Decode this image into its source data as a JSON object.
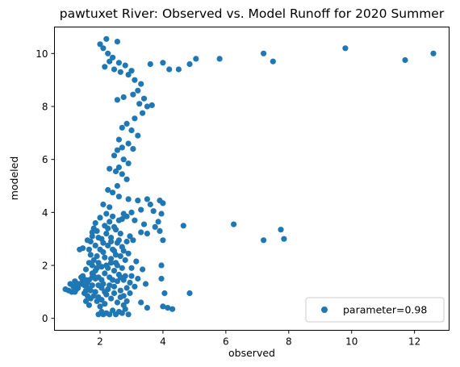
{
  "chart_data": {
    "type": "scatter",
    "title": "pawtuxet River: Observed vs. Model Runoff for 2020 Summer",
    "xlabel": "observed",
    "ylabel": "modeled",
    "xlim": [
      0.55,
      13.1
    ],
    "ylim": [
      -0.45,
      11.0
    ],
    "xticks": [
      2,
      4,
      6,
      8,
      10,
      12
    ],
    "yticks": [
      0,
      2,
      4,
      6,
      8,
      10
    ],
    "grid": false,
    "legend_position": "lower-right",
    "series": [
      {
        "name": "parameter=0.98",
        "color": "#1f77b4",
        "points": [
          [
            2.0,
            10.35
          ],
          [
            2.2,
            10.55
          ],
          [
            2.55,
            10.45
          ],
          [
            2.1,
            10.2
          ],
          [
            2.25,
            10.0
          ],
          [
            2.4,
            9.85
          ],
          [
            2.3,
            9.7
          ],
          [
            2.6,
            9.65
          ],
          [
            2.15,
            9.5
          ],
          [
            2.45,
            9.4
          ],
          [
            2.65,
            9.3
          ],
          [
            2.8,
            9.55
          ],
          [
            3.0,
            9.35
          ],
          [
            2.9,
            9.2
          ],
          [
            3.1,
            9.0
          ],
          [
            3.3,
            8.85
          ],
          [
            3.2,
            8.6
          ],
          [
            3.05,
            8.45
          ],
          [
            2.75,
            8.35
          ],
          [
            2.55,
            8.25
          ],
          [
            3.4,
            8.3
          ],
          [
            3.25,
            8.1
          ],
          [
            3.5,
            8.0
          ],
          [
            3.65,
            8.05
          ],
          [
            3.35,
            7.75
          ],
          [
            3.1,
            7.55
          ],
          [
            2.85,
            7.35
          ],
          [
            2.7,
            7.2
          ],
          [
            3.0,
            7.1
          ],
          [
            3.2,
            6.9
          ],
          [
            2.6,
            6.75
          ],
          [
            2.9,
            6.6
          ],
          [
            2.7,
            6.45
          ],
          [
            3.05,
            6.4
          ],
          [
            2.55,
            6.35
          ],
          [
            2.45,
            6.15
          ],
          [
            2.75,
            6.0
          ],
          [
            2.9,
            5.85
          ],
          [
            2.6,
            5.7
          ],
          [
            2.3,
            5.65
          ],
          [
            2.5,
            5.55
          ],
          [
            2.7,
            5.45
          ],
          [
            2.85,
            5.25
          ],
          [
            2.55,
            5.0
          ],
          [
            2.25,
            4.85
          ],
          [
            2.4,
            4.75
          ],
          [
            2.6,
            4.6
          ],
          [
            2.9,
            4.5
          ],
          [
            3.2,
            4.45
          ],
          [
            3.5,
            4.5
          ],
          [
            3.9,
            4.45
          ],
          [
            3.6,
            4.3
          ],
          [
            4.0,
            4.35
          ],
          [
            2.1,
            4.3
          ],
          [
            2.3,
            4.2
          ],
          [
            3.3,
            4.1
          ],
          [
            3.0,
            4.0
          ],
          [
            3.7,
            4.05
          ],
          [
            3.85,
            3.65
          ],
          [
            3.95,
            3.95
          ],
          [
            2.85,
            3.85
          ],
          [
            2.7,
            3.75
          ],
          [
            3.1,
            3.7
          ],
          [
            3.4,
            3.55
          ],
          [
            3.75,
            3.45
          ],
          [
            3.9,
            3.3
          ],
          [
            3.3,
            3.25
          ],
          [
            3.5,
            3.2
          ],
          [
            2.95,
            3.1
          ],
          [
            3.05,
            2.95
          ],
          [
            4.65,
            3.5
          ],
          [
            6.25,
            3.55
          ],
          [
            7.2,
            2.95
          ],
          [
            7.75,
            3.35
          ],
          [
            7.85,
            3.0
          ],
          [
            4.0,
            2.95
          ],
          [
            3.95,
            2.0
          ],
          [
            3.95,
            1.5
          ],
          [
            4.05,
            0.95
          ],
          [
            4.0,
            0.45
          ],
          [
            4.15,
            0.4
          ],
          [
            4.3,
            0.35
          ],
          [
            4.85,
            0.95
          ],
          [
            3.5,
            0.4
          ],
          [
            3.3,
            0.6
          ],
          [
            3.1,
            1.2
          ],
          [
            3.2,
            1.5
          ],
          [
            3.45,
            1.3
          ],
          [
            3.35,
            1.85
          ],
          [
            3.0,
            1.9
          ],
          [
            3.15,
            2.15
          ],
          [
            3.6,
            9.6
          ],
          [
            4.0,
            9.65
          ],
          [
            4.2,
            9.4
          ],
          [
            4.5,
            9.4
          ],
          [
            4.85,
            9.6
          ],
          [
            5.05,
            9.8
          ],
          [
            5.8,
            9.8
          ],
          [
            7.2,
            10.0
          ],
          [
            7.5,
            9.7
          ],
          [
            9.8,
            10.2
          ],
          [
            11.7,
            9.75
          ],
          [
            12.6,
            10.0
          ],
          [
            0.9,
            1.1
          ],
          [
            1.0,
            1.05
          ],
          [
            1.05,
            1.3
          ],
          [
            1.1,
            1.0
          ],
          [
            1.15,
            1.2
          ],
          [
            1.2,
            1.4
          ],
          [
            1.25,
            1.1
          ],
          [
            1.3,
            1.3
          ],
          [
            1.35,
            2.6
          ],
          [
            1.45,
            2.65
          ],
          [
            1.4,
            1.55
          ],
          [
            1.5,
            1.25
          ],
          [
            1.55,
            1.05
          ],
          [
            1.6,
            0.85
          ],
          [
            1.55,
            0.65
          ],
          [
            1.65,
            0.5
          ],
          [
            1.7,
            2.9
          ],
          [
            1.75,
            3.1
          ],
          [
            1.8,
            3.4
          ],
          [
            1.85,
            3.6
          ],
          [
            1.9,
            3.3
          ],
          [
            1.95,
            3.05
          ],
          [
            1.7,
            2.4
          ],
          [
            1.8,
            2.2
          ],
          [
            1.9,
            1.9
          ],
          [
            1.75,
            1.7
          ],
          [
            1.85,
            1.5
          ],
          [
            1.95,
            1.25
          ],
          [
            1.7,
            1.05
          ],
          [
            1.8,
            0.85
          ],
          [
            1.9,
            0.65
          ],
          [
            2.0,
            0.45
          ],
          [
            2.05,
            0.25
          ],
          [
            1.95,
            0.15
          ],
          [
            2.1,
            0.15
          ],
          [
            2.2,
            0.2
          ],
          [
            2.3,
            0.15
          ],
          [
            2.4,
            0.3
          ],
          [
            2.5,
            0.15
          ],
          [
            2.6,
            0.25
          ],
          [
            2.7,
            0.2
          ],
          [
            2.8,
            0.35
          ],
          [
            2.9,
            0.15
          ],
          [
            2.15,
            0.55
          ],
          [
            2.35,
            0.75
          ],
          [
            2.55,
            0.6
          ],
          [
            2.45,
            0.95
          ],
          [
            2.25,
            1.1
          ],
          [
            2.65,
            1.05
          ],
          [
            2.75,
            0.85
          ],
          [
            2.85,
            1.15
          ],
          [
            2.95,
            1.35
          ],
          [
            2.05,
            1.45
          ],
          [
            2.15,
            1.7
          ],
          [
            2.3,
            1.55
          ],
          [
            2.45,
            1.8
          ],
          [
            2.6,
            1.65
          ],
          [
            2.75,
            1.45
          ],
          [
            2.2,
            2.0
          ],
          [
            2.35,
            2.25
          ],
          [
            2.5,
            2.1
          ],
          [
            2.65,
            2.35
          ],
          [
            2.8,
            2.2
          ],
          [
            2.1,
            2.5
          ],
          [
            2.25,
            2.75
          ],
          [
            2.4,
            2.6
          ],
          [
            2.55,
            2.85
          ],
          [
            2.7,
            2.7
          ],
          [
            2.05,
            3.0
          ],
          [
            2.2,
            3.2
          ],
          [
            2.35,
            3.05
          ],
          [
            2.5,
            3.35
          ],
          [
            2.65,
            3.2
          ],
          [
            2.15,
            3.5
          ],
          [
            2.3,
            3.65
          ],
          [
            2.45,
            3.45
          ],
          [
            2.6,
            3.7
          ],
          [
            2.0,
            3.8
          ],
          [
            2.2,
            3.95
          ],
          [
            2.4,
            3.85
          ],
          [
            2.75,
            3.95
          ],
          [
            2.1,
            2.85
          ],
          [
            1.65,
            2.1
          ],
          [
            1.6,
            1.35
          ],
          [
            1.5,
            0.95
          ],
          [
            1.45,
            1.6
          ],
          [
            1.55,
            1.85
          ],
          [
            1.65,
            2.6
          ],
          [
            1.75,
            1.25
          ],
          [
            1.85,
            1.0
          ],
          [
            1.95,
            0.8
          ],
          [
            2.05,
            0.7
          ],
          [
            1.6,
            1.15
          ],
          [
            1.7,
            0.75
          ],
          [
            1.8,
            1.6
          ],
          [
            1.9,
            2.35
          ],
          [
            2.0,
            2.6
          ],
          [
            2.1,
            1.3
          ],
          [
            2.2,
            0.9
          ],
          [
            2.3,
            1.25
          ],
          [
            2.4,
            1.45
          ],
          [
            2.5,
            2.4
          ],
          [
            2.6,
            2.95
          ],
          [
            2.7,
            1.9
          ],
          [
            2.8,
            1.6
          ],
          [
            2.9,
            2.45
          ],
          [
            3.0,
            1.6
          ],
          [
            1.4,
            1.3
          ],
          [
            1.3,
            1.15
          ],
          [
            1.2,
            1.0
          ],
          [
            1.6,
            2.95
          ],
          [
            1.75,
            3.25
          ],
          [
            1.85,
            2.75
          ],
          [
            1.95,
            2.1
          ],
          [
            2.05,
            1.95
          ],
          [
            2.15,
            2.3
          ],
          [
            2.25,
            3.4
          ],
          [
            2.35,
            2.9
          ],
          [
            2.45,
            1.2
          ],
          [
            2.55,
            1.4
          ],
          [
            2.65,
            0.8
          ],
          [
            2.75,
            0.5
          ],
          [
            2.85,
            0.65
          ],
          [
            2.95,
            0.95
          ],
          [
            1.75,
            2.0
          ],
          [
            1.85,
            1.8
          ],
          [
            1.95,
            1.55
          ],
          [
            2.05,
            1.15
          ],
          [
            2.15,
            1.0
          ],
          [
            2.25,
            1.9
          ],
          [
            2.35,
            2.1
          ],
          [
            2.45,
            2.55
          ],
          [
            2.55,
            2.0
          ],
          [
            2.65,
            1.55
          ],
          [
            2.75,
            2.55
          ],
          [
            2.85,
            2.9
          ],
          [
            1.65,
            1.45
          ],
          [
            1.75,
            1.55
          ],
          [
            1.55,
            1.45
          ],
          [
            1.45,
            1.45
          ],
          [
            1.35,
            1.3
          ],
          [
            1.25,
            1.25
          ]
        ]
      }
    ]
  }
}
